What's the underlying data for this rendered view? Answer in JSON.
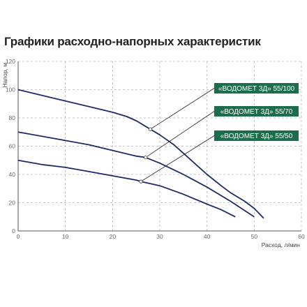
{
  "title": "Графики расходно-напорных характеристик",
  "colors": {
    "curve": "#1c2a6b",
    "legend_bg": "#1b6e4a",
    "grid": "#b5b5b5",
    "marker_fill": "#ffffff"
  },
  "chart_data": {
    "type": "line",
    "xlabel": "Расход, л/мин",
    "ylabel": "Напор, м",
    "xlim": [
      0,
      60
    ],
    "ylim": [
      0,
      120
    ],
    "xticks": [
      0,
      10,
      20,
      30,
      40,
      50,
      60
    ],
    "yticks": [
      0,
      20,
      40,
      60,
      80,
      100,
      120
    ],
    "grid": "dashed",
    "series": [
      {
        "name": "«ВОДОМЕТ 3Д» 55/100",
        "x": [
          0,
          5,
          10,
          15,
          20,
          23,
          25,
          28,
          30,
          33,
          35,
          38,
          40,
          43,
          45,
          48,
          50,
          52
        ],
        "y": [
          100,
          96,
          92,
          88,
          84,
          81,
          78,
          72,
          68,
          61,
          55,
          46,
          40,
          32,
          27,
          21,
          16,
          9
        ]
      },
      {
        "name": "«ВОДОМЕТ 3Д» 55/70",
        "x": [
          0,
          5,
          10,
          15,
          20,
          25,
          27,
          30,
          35,
          40,
          45,
          50
        ],
        "y": [
          70,
          67,
          64,
          61,
          57,
          53,
          52,
          48,
          40,
          31,
          21,
          10
        ]
      },
      {
        "name": "«ВОДОМЕТ 3Д» 55/50",
        "x": [
          0,
          5,
          10,
          15,
          20,
          25,
          26,
          30,
          35,
          40,
          43,
          46
        ],
        "y": [
          50,
          47,
          45,
          42,
          39,
          36,
          35,
          32,
          26,
          19,
          15,
          10
        ]
      }
    ],
    "markers": [
      {
        "series": 0,
        "x": 28,
        "y": 72
      },
      {
        "series": 1,
        "x": 27,
        "y": 52
      },
      {
        "series": 2,
        "x": 26,
        "y": 35
      }
    ],
    "legend": "right"
  }
}
